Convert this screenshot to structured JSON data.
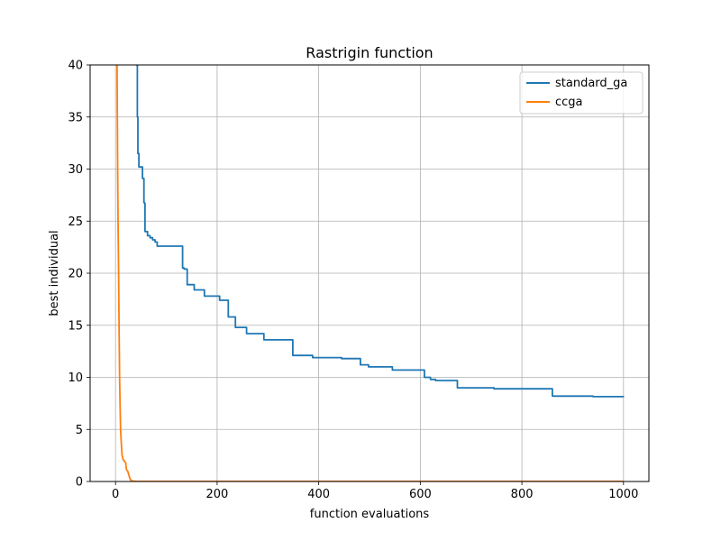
{
  "chart_data": {
    "type": "line",
    "title": "Rastrigin function",
    "xlabel": "function evaluations",
    "ylabel": "best individual",
    "xlim": [
      -50,
      1050
    ],
    "ylim": [
      0,
      40
    ],
    "xticks": [
      0,
      200,
      400,
      600,
      800,
      1000
    ],
    "yticks": [
      0,
      5,
      10,
      15,
      20,
      25,
      30,
      35,
      40
    ],
    "grid": true,
    "legend_position": "top-right",
    "series": [
      {
        "name": "standard_ga",
        "color": "#1f77b4",
        "step": true,
        "x": [
          40,
          43,
          44,
          46,
          53,
          56,
          57,
          58,
          63,
          68,
          73,
          78,
          82,
          87,
          132,
          135,
          141,
          155,
          175,
          205,
          222,
          236,
          258,
          292,
          349,
          388,
          445,
          482,
          498,
          545,
          608,
          620,
          630,
          673,
          745,
          860,
          940,
          1000
        ],
        "y": [
          40,
          35,
          31.5,
          30.2,
          29.1,
          26.8,
          26.7,
          24,
          23.6,
          23.4,
          23.2,
          23.0,
          22.6,
          22.6,
          20.5,
          20.4,
          18.9,
          18.4,
          17.8,
          17.4,
          15.8,
          14.8,
          14.2,
          13.6,
          12.1,
          11.9,
          11.8,
          11.2,
          11.0,
          10.7,
          10.0,
          9.8,
          9.7,
          9.0,
          8.9,
          8.2,
          8.15,
          8.1
        ]
      },
      {
        "name": "ccga",
        "color": "#ff7f0e",
        "step": false,
        "x": [
          3,
          4,
          5,
          6,
          7,
          8,
          9,
          10,
          11,
          12,
          13,
          15,
          17,
          18,
          19,
          20,
          21,
          22,
          24,
          27,
          28,
          30,
          31,
          35,
          40,
          60,
          100,
          400,
          700,
          1000
        ],
        "y": [
          40,
          32,
          25,
          20,
          15,
          10,
          7,
          5,
          4,
          3.2,
          2.5,
          2.1,
          2.0,
          1.9,
          1.85,
          1.8,
          1.3,
          1.1,
          1.0,
          0.5,
          0.3,
          0.15,
          0.08,
          0.03,
          0.02,
          0.01,
          0.01,
          0.01,
          0.01,
          0.01
        ]
      }
    ]
  }
}
